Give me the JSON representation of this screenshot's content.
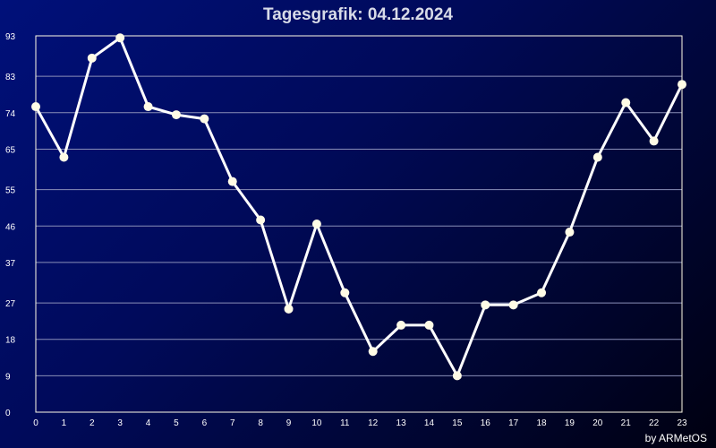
{
  "page": {
    "credit": "by ARMetOS"
  },
  "chart_data": {
    "type": "line",
    "title": "Tagesgrafik: 04.12.2024",
    "xlabel": "",
    "ylabel": "",
    "x": [
      0,
      1,
      2,
      3,
      4,
      5,
      6,
      7,
      8,
      9,
      10,
      11,
      12,
      13,
      14,
      15,
      16,
      17,
      18,
      19,
      20,
      21,
      22,
      23
    ],
    "values": [
      75.5,
      63,
      87.5,
      92.5,
      75.5,
      73.5,
      72.5,
      57,
      47.5,
      25.5,
      46.5,
      29.5,
      15,
      21.5,
      21.5,
      9,
      26.5,
      26.5,
      29.5,
      44.5,
      63,
      76.5,
      67,
      81
    ],
    "xlim": [
      0,
      23
    ],
    "ylim": [
      0,
      93
    ],
    "yticks": [
      0,
      9,
      18,
      27,
      37,
      46,
      55,
      65,
      74,
      83,
      93
    ],
    "grid": true,
    "legend": "none",
    "colors": {
      "line": "#ffffff",
      "marker": "#fffbe6",
      "grid": "#8a8fb8",
      "frame": "#fffbe6",
      "title": "#d8dbe8",
      "background_start": "#00107a",
      "background_end": "#000010"
    }
  }
}
